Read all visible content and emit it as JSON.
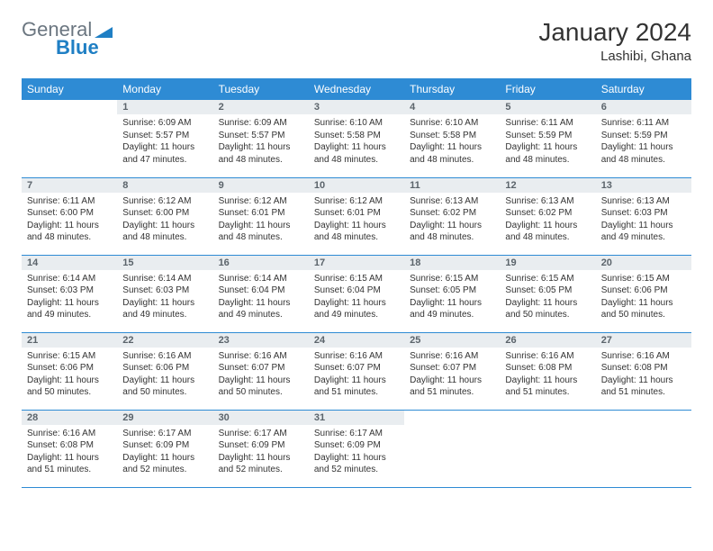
{
  "brand": {
    "part1": "General",
    "part2": "Blue",
    "accent_color": "#1f7fc4",
    "muted_color": "#6b7680"
  },
  "title": "January 2024",
  "location": "Lashibi, Ghana",
  "header_bg": "#2e8bd4",
  "header_fg": "#ffffff",
  "daynum_bg": "#e9edf0",
  "daynum_fg": "#5b646b",
  "border_color": "#2e8bd4",
  "text_color": "#333333",
  "weekdays": [
    "Sunday",
    "Monday",
    "Tuesday",
    "Wednesday",
    "Thursday",
    "Friday",
    "Saturday"
  ],
  "weeks": [
    [
      {
        "empty": true
      },
      {
        "n": "1",
        "sr": "Sunrise: 6:09 AM",
        "ss": "Sunset: 5:57 PM",
        "dl": "Daylight: 11 hours and 47 minutes."
      },
      {
        "n": "2",
        "sr": "Sunrise: 6:09 AM",
        "ss": "Sunset: 5:57 PM",
        "dl": "Daylight: 11 hours and 48 minutes."
      },
      {
        "n": "3",
        "sr": "Sunrise: 6:10 AM",
        "ss": "Sunset: 5:58 PM",
        "dl": "Daylight: 11 hours and 48 minutes."
      },
      {
        "n": "4",
        "sr": "Sunrise: 6:10 AM",
        "ss": "Sunset: 5:58 PM",
        "dl": "Daylight: 11 hours and 48 minutes."
      },
      {
        "n": "5",
        "sr": "Sunrise: 6:11 AM",
        "ss": "Sunset: 5:59 PM",
        "dl": "Daylight: 11 hours and 48 minutes."
      },
      {
        "n": "6",
        "sr": "Sunrise: 6:11 AM",
        "ss": "Sunset: 5:59 PM",
        "dl": "Daylight: 11 hours and 48 minutes."
      }
    ],
    [
      {
        "n": "7",
        "sr": "Sunrise: 6:11 AM",
        "ss": "Sunset: 6:00 PM",
        "dl": "Daylight: 11 hours and 48 minutes."
      },
      {
        "n": "8",
        "sr": "Sunrise: 6:12 AM",
        "ss": "Sunset: 6:00 PM",
        "dl": "Daylight: 11 hours and 48 minutes."
      },
      {
        "n": "9",
        "sr": "Sunrise: 6:12 AM",
        "ss": "Sunset: 6:01 PM",
        "dl": "Daylight: 11 hours and 48 minutes."
      },
      {
        "n": "10",
        "sr": "Sunrise: 6:12 AM",
        "ss": "Sunset: 6:01 PM",
        "dl": "Daylight: 11 hours and 48 minutes."
      },
      {
        "n": "11",
        "sr": "Sunrise: 6:13 AM",
        "ss": "Sunset: 6:02 PM",
        "dl": "Daylight: 11 hours and 48 minutes."
      },
      {
        "n": "12",
        "sr": "Sunrise: 6:13 AM",
        "ss": "Sunset: 6:02 PM",
        "dl": "Daylight: 11 hours and 48 minutes."
      },
      {
        "n": "13",
        "sr": "Sunrise: 6:13 AM",
        "ss": "Sunset: 6:03 PM",
        "dl": "Daylight: 11 hours and 49 minutes."
      }
    ],
    [
      {
        "n": "14",
        "sr": "Sunrise: 6:14 AM",
        "ss": "Sunset: 6:03 PM",
        "dl": "Daylight: 11 hours and 49 minutes."
      },
      {
        "n": "15",
        "sr": "Sunrise: 6:14 AM",
        "ss": "Sunset: 6:03 PM",
        "dl": "Daylight: 11 hours and 49 minutes."
      },
      {
        "n": "16",
        "sr": "Sunrise: 6:14 AM",
        "ss": "Sunset: 6:04 PM",
        "dl": "Daylight: 11 hours and 49 minutes."
      },
      {
        "n": "17",
        "sr": "Sunrise: 6:15 AM",
        "ss": "Sunset: 6:04 PM",
        "dl": "Daylight: 11 hours and 49 minutes."
      },
      {
        "n": "18",
        "sr": "Sunrise: 6:15 AM",
        "ss": "Sunset: 6:05 PM",
        "dl": "Daylight: 11 hours and 49 minutes."
      },
      {
        "n": "19",
        "sr": "Sunrise: 6:15 AM",
        "ss": "Sunset: 6:05 PM",
        "dl": "Daylight: 11 hours and 50 minutes."
      },
      {
        "n": "20",
        "sr": "Sunrise: 6:15 AM",
        "ss": "Sunset: 6:06 PM",
        "dl": "Daylight: 11 hours and 50 minutes."
      }
    ],
    [
      {
        "n": "21",
        "sr": "Sunrise: 6:15 AM",
        "ss": "Sunset: 6:06 PM",
        "dl": "Daylight: 11 hours and 50 minutes."
      },
      {
        "n": "22",
        "sr": "Sunrise: 6:16 AM",
        "ss": "Sunset: 6:06 PM",
        "dl": "Daylight: 11 hours and 50 minutes."
      },
      {
        "n": "23",
        "sr": "Sunrise: 6:16 AM",
        "ss": "Sunset: 6:07 PM",
        "dl": "Daylight: 11 hours and 50 minutes."
      },
      {
        "n": "24",
        "sr": "Sunrise: 6:16 AM",
        "ss": "Sunset: 6:07 PM",
        "dl": "Daylight: 11 hours and 51 minutes."
      },
      {
        "n": "25",
        "sr": "Sunrise: 6:16 AM",
        "ss": "Sunset: 6:07 PM",
        "dl": "Daylight: 11 hours and 51 minutes."
      },
      {
        "n": "26",
        "sr": "Sunrise: 6:16 AM",
        "ss": "Sunset: 6:08 PM",
        "dl": "Daylight: 11 hours and 51 minutes."
      },
      {
        "n": "27",
        "sr": "Sunrise: 6:16 AM",
        "ss": "Sunset: 6:08 PM",
        "dl": "Daylight: 11 hours and 51 minutes."
      }
    ],
    [
      {
        "n": "28",
        "sr": "Sunrise: 6:16 AM",
        "ss": "Sunset: 6:08 PM",
        "dl": "Daylight: 11 hours and 51 minutes."
      },
      {
        "n": "29",
        "sr": "Sunrise: 6:17 AM",
        "ss": "Sunset: 6:09 PM",
        "dl": "Daylight: 11 hours and 52 minutes."
      },
      {
        "n": "30",
        "sr": "Sunrise: 6:17 AM",
        "ss": "Sunset: 6:09 PM",
        "dl": "Daylight: 11 hours and 52 minutes."
      },
      {
        "n": "31",
        "sr": "Sunrise: 6:17 AM",
        "ss": "Sunset: 6:09 PM",
        "dl": "Daylight: 11 hours and 52 minutes."
      },
      {
        "empty": true
      },
      {
        "empty": true
      },
      {
        "empty": true
      }
    ]
  ]
}
